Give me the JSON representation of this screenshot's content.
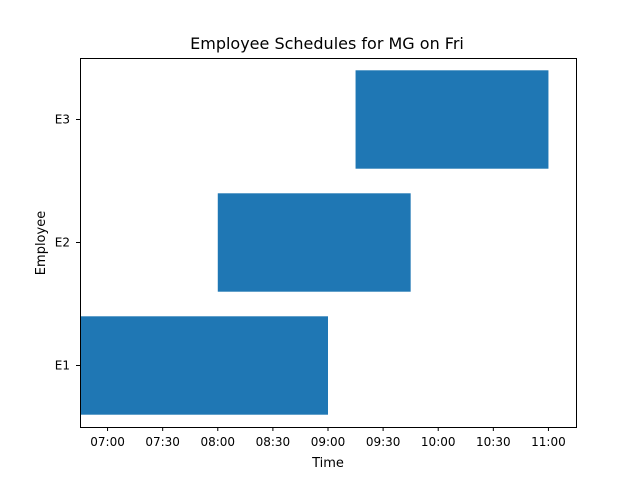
{
  "chart_data": {
    "type": "bar",
    "orientation": "horizontal",
    "title": "Employee Schedules for MG on Fri",
    "xlabel": "Time",
    "ylabel": "Employee",
    "categories": [
      "E1",
      "E2",
      "E3"
    ],
    "bars": [
      {
        "category": "E1",
        "start": "06:45",
        "end": "09:00"
      },
      {
        "category": "E2",
        "start": "08:00",
        "end": "09:45"
      },
      {
        "category": "E3",
        "start": "09:15",
        "end": "11:00"
      }
    ],
    "x_ticks": [
      "07:00",
      "07:30",
      "08:00",
      "08:30",
      "09:00",
      "09:30",
      "10:00",
      "10:30",
      "11:00"
    ],
    "xlim": [
      "06:45",
      "11:15"
    ],
    "bar_color": "#1f77b4",
    "grid": false,
    "legend": "none"
  }
}
